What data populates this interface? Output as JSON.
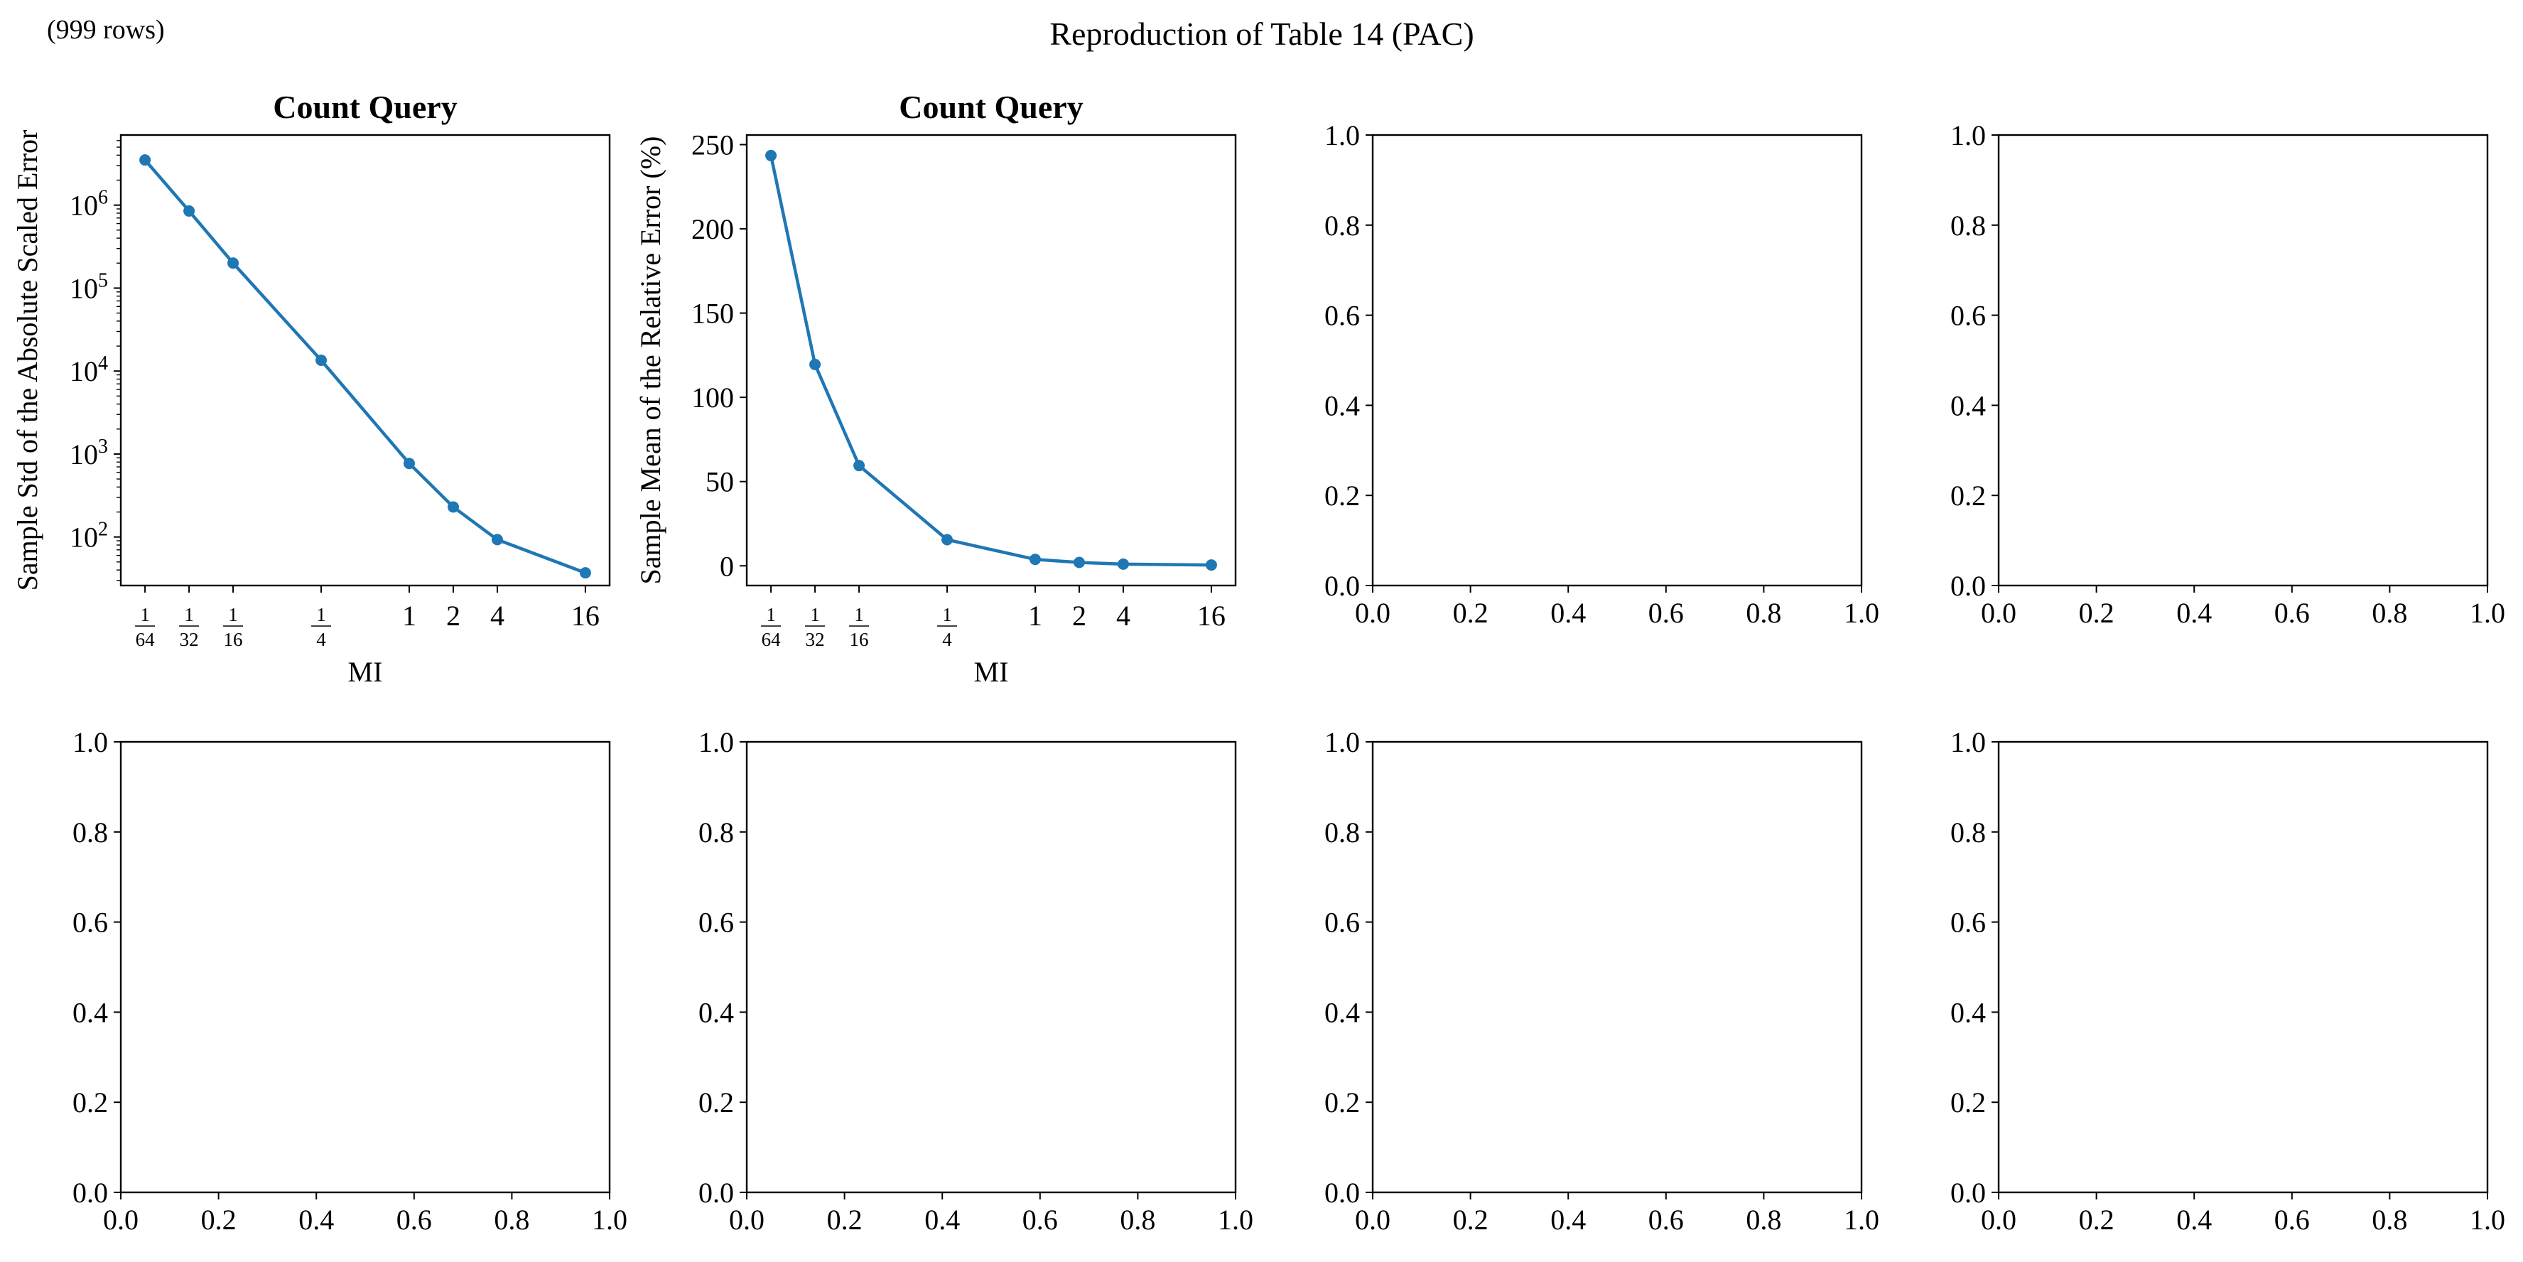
{
  "figure": {
    "title": "Reproduction of Table 14 (PAC)",
    "corner_note": "(999 rows)"
  },
  "colors": {
    "series": "#1f77b4",
    "axes": "#000000"
  },
  "chart_data": [
    {
      "type": "line",
      "title": "Count Query",
      "xlabel": "MI",
      "ylabel": "Sample Std of the Absolute Scaled Error",
      "x_scale": "log2",
      "y_scale": "log",
      "x_ticks": [
        {
          "value": 0.015625,
          "num": "1",
          "den": "64"
        },
        {
          "value": 0.03125,
          "num": "1",
          "den": "32"
        },
        {
          "value": 0.0625,
          "num": "1",
          "den": "16"
        },
        {
          "value": 0.25,
          "num": "1",
          "den": "4"
        },
        {
          "value": 1,
          "label": "1"
        },
        {
          "value": 2,
          "label": "2"
        },
        {
          "value": 4,
          "label": "4"
        },
        {
          "value": 16,
          "label": "16"
        }
      ],
      "y_ticks": [
        {
          "value": 100,
          "base": "10",
          "exp": "2"
        },
        {
          "value": 1000,
          "base": "10",
          "exp": "3"
        },
        {
          "value": 10000,
          "base": "10",
          "exp": "4"
        },
        {
          "value": 100000,
          "base": "10",
          "exp": "5"
        },
        {
          "value": 1000000,
          "base": "10",
          "exp": "6"
        }
      ],
      "x": [
        0.015625,
        0.03125,
        0.0625,
        0.25,
        1,
        2,
        4,
        16
      ],
      "series": [
        {
          "values": [
            3500000,
            850000,
            200000,
            13500,
            770,
            230,
            93,
            37
          ]
        }
      ],
      "xlim_log2": [
        -6.55,
        4.55
      ],
      "ylim": [
        26,
        7000000
      ],
      "grid": false
    },
    {
      "type": "line",
      "title": "Count Query",
      "xlabel": "MI",
      "ylabel": "Sample Mean of the Relative Error (%)",
      "x_scale": "log2",
      "y_scale": "linear",
      "x_ticks": [
        {
          "value": 0.015625,
          "num": "1",
          "den": "64"
        },
        {
          "value": 0.03125,
          "num": "1",
          "den": "32"
        },
        {
          "value": 0.0625,
          "num": "1",
          "den": "16"
        },
        {
          "value": 0.25,
          "num": "1",
          "den": "4"
        },
        {
          "value": 1,
          "label": "1"
        },
        {
          "value": 2,
          "label": "2"
        },
        {
          "value": 4,
          "label": "4"
        },
        {
          "value": 16,
          "label": "16"
        }
      ],
      "y_ticks": [
        0,
        50,
        100,
        150,
        200,
        250
      ],
      "x": [
        0.015625,
        0.03125,
        0.0625,
        0.25,
        1,
        2,
        4,
        16
      ],
      "series": [
        {
          "values": [
            243.5,
            119.5,
            59.5,
            15.5,
            3.8,
            2.0,
            1.0,
            0.5
          ]
        }
      ],
      "xlim_log2": [
        -6.55,
        4.55
      ],
      "ylim": [
        -11.7,
        255.7
      ],
      "grid": false
    },
    {
      "type": "line",
      "empty": true,
      "x_ticks": [
        "0.0",
        "0.2",
        "0.4",
        "0.6",
        "0.8",
        "1.0"
      ],
      "y_ticks": [
        "0.0",
        "0.2",
        "0.4",
        "0.6",
        "0.8",
        "1.0"
      ],
      "xlim": [
        0,
        1
      ],
      "ylim": [
        0,
        1
      ]
    },
    {
      "type": "line",
      "empty": true,
      "x_ticks": [
        "0.0",
        "0.2",
        "0.4",
        "0.6",
        "0.8",
        "1.0"
      ],
      "y_ticks": [
        "0.0",
        "0.2",
        "0.4",
        "0.6",
        "0.8",
        "1.0"
      ],
      "xlim": [
        0,
        1
      ],
      "ylim": [
        0,
        1
      ]
    },
    {
      "type": "line",
      "empty": true,
      "x_ticks": [
        "0.0",
        "0.2",
        "0.4",
        "0.6",
        "0.8",
        "1.0"
      ],
      "y_ticks": [
        "0.0",
        "0.2",
        "0.4",
        "0.6",
        "0.8",
        "1.0"
      ],
      "xlim": [
        0,
        1
      ],
      "ylim": [
        0,
        1
      ]
    },
    {
      "type": "line",
      "empty": true,
      "x_ticks": [
        "0.0",
        "0.2",
        "0.4",
        "0.6",
        "0.8",
        "1.0"
      ],
      "y_ticks": [
        "0.0",
        "0.2",
        "0.4",
        "0.6",
        "0.8",
        "1.0"
      ],
      "xlim": [
        0,
        1
      ],
      "ylim": [
        0,
        1
      ]
    },
    {
      "type": "line",
      "empty": true,
      "x_ticks": [
        "0.0",
        "0.2",
        "0.4",
        "0.6",
        "0.8",
        "1.0"
      ],
      "y_ticks": [
        "0.0",
        "0.2",
        "0.4",
        "0.6",
        "0.8",
        "1.0"
      ],
      "xlim": [
        0,
        1
      ],
      "ylim": [
        0,
        1
      ]
    },
    {
      "type": "line",
      "empty": true,
      "x_ticks": [
        "0.0",
        "0.2",
        "0.4",
        "0.6",
        "0.8",
        "1.0"
      ],
      "y_ticks": [
        "0.0",
        "0.2",
        "0.4",
        "0.6",
        "0.8",
        "1.0"
      ],
      "xlim": [
        0,
        1
      ],
      "ylim": [
        0,
        1
      ]
    }
  ]
}
